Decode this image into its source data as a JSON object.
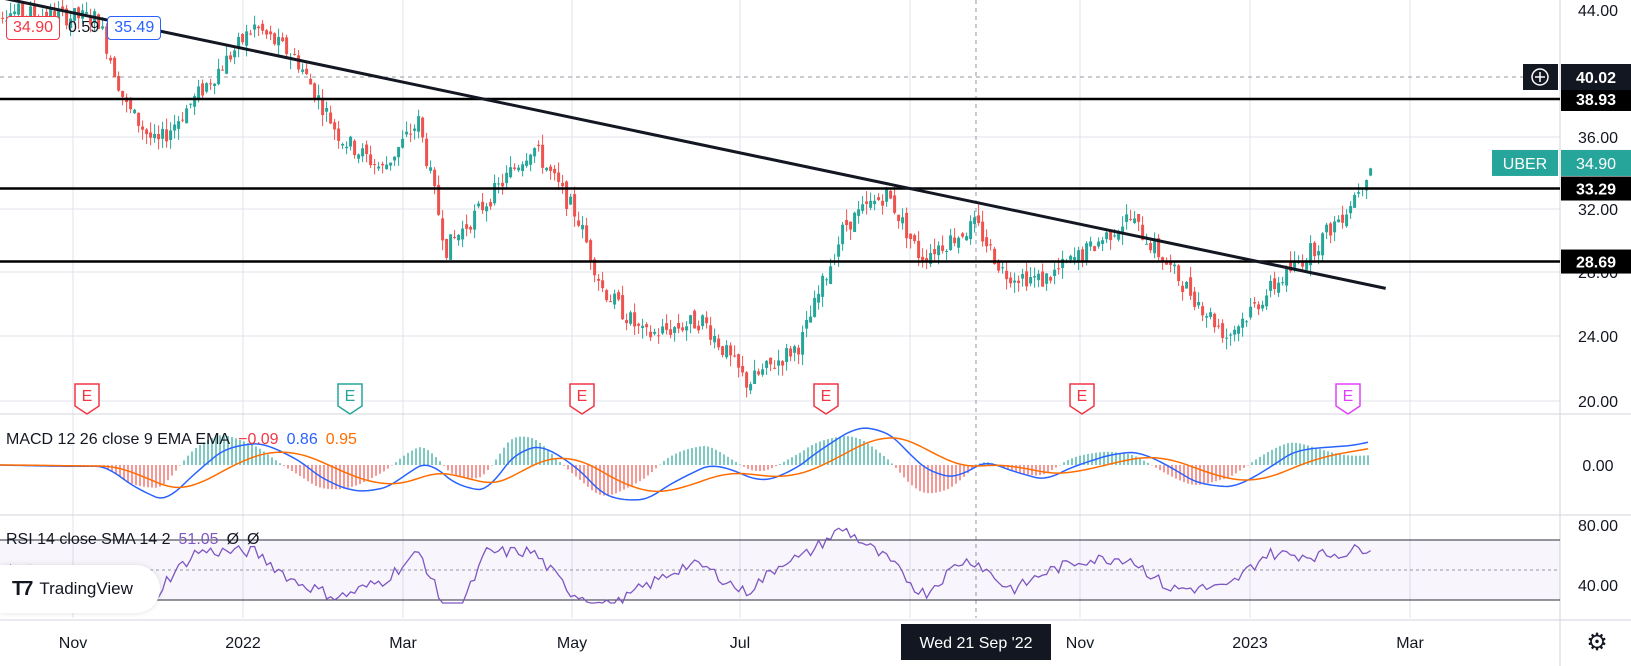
{
  "header": {
    "price_left": "34.90",
    "change": "0.59",
    "price_right": "35.49"
  },
  "colors": {
    "up": "#26a69a",
    "down": "#ef5350",
    "macd_line": "#2962ff",
    "signal_line": "#ff6d00",
    "rsi_line": "#7e57c2",
    "earnings": "#f23645",
    "earnings_upcoming": "#e040fb",
    "grid": "#e0e3eb",
    "level": "#000000",
    "ticker_badge": "#26a69a"
  },
  "price_axis": {
    "ticks": [
      "44.00",
      "36.00",
      "32.00",
      "28.00",
      "24.00",
      "20.00"
    ],
    "cursor_value": "40.02",
    "add_icon": "plus-circle-icon"
  },
  "levels": [
    {
      "value": 38.93,
      "label": "38.93"
    },
    {
      "value": 33.29,
      "label": "33.29"
    },
    {
      "value": 28.69,
      "label": "28.69"
    }
  ],
  "ticker": {
    "symbol": "UBER",
    "price": "34.90"
  },
  "time_axis": {
    "labels": [
      "Nov",
      "2022",
      "Mar",
      "May",
      "Jul",
      "Nov",
      "2023",
      "Mar"
    ],
    "crosshair_label": "Wed 21 Sep '22"
  },
  "earnings_markers": [
    "E",
    "E",
    "E",
    "E",
    "E",
    "E"
  ],
  "macd": {
    "label": "MACD 12 26 close 9 EMA EMA",
    "hist": "−0.09",
    "macd": "0.86",
    "signal": "0.95",
    "axis_tick": "0.00"
  },
  "rsi": {
    "label": "RSI 14 close SMA 14 2",
    "value": "51.05",
    "extra1": "Ø",
    "extra2": "Ø",
    "axis_ticks": [
      "80.00",
      "40.00"
    ]
  },
  "branding": {
    "name": "TradingView"
  },
  "chart_data": {
    "type": "candlestick",
    "symbol": "UBER",
    "x_range": [
      "2021-10",
      "2023-03"
    ],
    "ylim": [
      20,
      44
    ],
    "price_path": [
      [
        "2021-10-01",
        44.5
      ],
      [
        "2021-11-10",
        44.0
      ],
      [
        "2021-11-20",
        38.5
      ],
      [
        "2021-12-01",
        36.0
      ],
      [
        "2021-12-15",
        39.0
      ],
      [
        "2022-01-05",
        43.5
      ],
      [
        "2022-01-20",
        41.5
      ],
      [
        "2022-02-05",
        36.5
      ],
      [
        "2022-02-20",
        34.5
      ],
      [
        "2022-03-05",
        37.5
      ],
      [
        "2022-03-15",
        29.5
      ],
      [
        "2022-04-01",
        33.0
      ],
      [
        "2022-04-15",
        36.0
      ],
      [
        "2022-05-01",
        31.5
      ],
      [
        "2022-05-10",
        27.0
      ],
      [
        "2022-05-25",
        24.0
      ],
      [
        "2022-06-15",
        25.0
      ],
      [
        "2022-07-01",
        21.0
      ],
      [
        "2022-07-20",
        23.5
      ],
      [
        "2022-08-05",
        31.0
      ],
      [
        "2022-08-20",
        33.0
      ],
      [
        "2022-09-01",
        29.0
      ],
      [
        "2022-09-21",
        31.0
      ],
      [
        "2022-10-01",
        28.0
      ],
      [
        "2022-10-15",
        27.5
      ],
      [
        "2022-11-01",
        29.5
      ],
      [
        "2022-11-15",
        31.5
      ],
      [
        "2022-12-01",
        28.0
      ],
      [
        "2022-12-20",
        24.0
      ],
      [
        "2023-01-05",
        27.0
      ],
      [
        "2023-01-20",
        29.5
      ],
      [
        "2023-02-01",
        32.0
      ],
      [
        "2023-02-10",
        34.9
      ]
    ],
    "horizontal_levels": [
      38.93,
      33.29,
      28.69
    ],
    "trendline": [
      [
        "2021-10-01",
        45.5
      ],
      [
        "2023-02-15",
        27.0
      ]
    ],
    "last_price": 34.9,
    "macd_data": {
      "macd": 0.86,
      "signal": 0.95,
      "histogram": -0.09
    },
    "rsi_data": {
      "value": 51.05,
      "levels": [
        70,
        30
      ]
    }
  }
}
